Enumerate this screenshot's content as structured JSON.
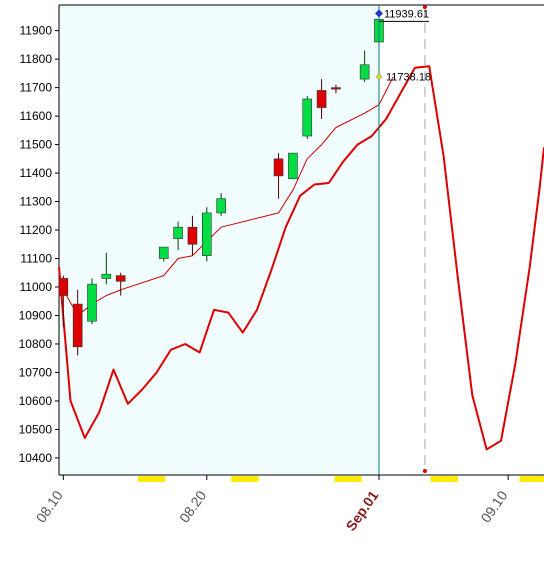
{
  "chart_data": {
    "type": "candlestick",
    "y_ticks": [
      10400,
      10500,
      10600,
      10700,
      10800,
      10900,
      11000,
      11100,
      11200,
      11300,
      11400,
      11500,
      11600,
      11700,
      11800,
      11900
    ],
    "ylim": [
      10340,
      11990
    ],
    "x_labels": [
      {
        "label": "08.10",
        "index": 0,
        "highlight": false
      },
      {
        "label": "08.20",
        "index": 10,
        "highlight": false
      },
      {
        "label": "Sep.01",
        "index": 22,
        "highlight": true
      },
      {
        "label": "09.10",
        "index": 31,
        "highlight": false
      }
    ],
    "x_range": [
      -0.3,
      33.5
    ],
    "cursor_index": 22,
    "forecast_index": 25.2,
    "candles": [
      {
        "i": 0,
        "open": 11030,
        "high": 11040,
        "low": 10860,
        "close": 10970
      },
      {
        "i": 1,
        "open": 10940,
        "high": 10990,
        "low": 10760,
        "close": 10790
      },
      {
        "i": 2,
        "open": 10880,
        "high": 11030,
        "low": 10870,
        "close": 11010
      },
      {
        "i": 3,
        "open": 11030,
        "high": 11120,
        "low": 11010,
        "close": 11045
      },
      {
        "i": 4,
        "open": 11040,
        "high": 11050,
        "low": 10970,
        "close": 11020
      },
      {
        "i": 7,
        "open": 11100,
        "high": 11140,
        "low": 11090,
        "close": 11140
      },
      {
        "i": 8,
        "open": 11170,
        "high": 11230,
        "low": 11130,
        "close": 11210
      },
      {
        "i": 9,
        "open": 11210,
        "high": 11250,
        "low": 11110,
        "close": 11150
      },
      {
        "i": 10,
        "open": 11110,
        "high": 11280,
        "low": 11090,
        "close": 11260
      },
      {
        "i": 11,
        "open": 11260,
        "high": 11330,
        "low": 11250,
        "close": 11310
      },
      {
        "i": 15,
        "open": 11450,
        "high": 11470,
        "low": 11310,
        "close": 11390
      },
      {
        "i": 16,
        "open": 11380,
        "high": 11470,
        "low": 11380,
        "close": 11470
      },
      {
        "i": 17,
        "open": 11530,
        "high": 11670,
        "low": 11520,
        "close": 11660
      },
      {
        "i": 18,
        "open": 11690,
        "high": 11730,
        "low": 11590,
        "close": 11630
      },
      {
        "i": 19,
        "open": 11700,
        "high": 11710,
        "low": 11680,
        "close": 11695
      },
      {
        "i": 21,
        "open": 11730,
        "high": 11830,
        "low": 11720,
        "close": 11780
      },
      {
        "i": 22,
        "open": 11860,
        "high": 11940,
        "low": 11850,
        "close": 11940
      }
    ],
    "series": [
      {
        "color": "#cc0000",
        "width": 1,
        "points": [
          [
            0,
            10990
          ],
          [
            1,
            10900
          ],
          [
            2,
            10940
          ],
          [
            3,
            10970
          ],
          [
            4,
            10990
          ],
          [
            7,
            11040
          ],
          [
            8,
            11100
          ],
          [
            9,
            11110
          ],
          [
            10,
            11160
          ],
          [
            11,
            11210
          ],
          [
            15,
            11260
          ],
          [
            16,
            11340
          ],
          [
            17,
            11450
          ],
          [
            18,
            11500
          ],
          [
            19,
            11560
          ],
          [
            21,
            11610
          ],
          [
            22,
            11640
          ],
          [
            23,
            11738.18
          ]
        ]
      },
      {
        "color": "#dd0000",
        "width": 2,
        "points": [
          [
            -0.3,
            11070
          ],
          [
            0.5,
            10600
          ],
          [
            1.5,
            10470
          ],
          [
            2.5,
            10560
          ],
          [
            3.5,
            10710
          ],
          [
            4.5,
            10590
          ],
          [
            5.5,
            10640
          ],
          [
            6.5,
            10700
          ],
          [
            7.5,
            10780
          ],
          [
            8.5,
            10800
          ],
          [
            9.5,
            10770
          ],
          [
            10.5,
            10920
          ],
          [
            11.5,
            10910
          ],
          [
            12.5,
            10840
          ],
          [
            13.5,
            10920
          ],
          [
            14.5,
            11060
          ],
          [
            15.5,
            11210
          ],
          [
            16.5,
            11320
          ],
          [
            17.5,
            11360
          ],
          [
            18.5,
            11365
          ],
          [
            19.5,
            11440
          ],
          [
            20.5,
            11500
          ],
          [
            21.5,
            11530
          ],
          [
            22.5,
            11590
          ],
          [
            23.5,
            11680
          ],
          [
            24.5,
            11770
          ],
          [
            25.5,
            11775
          ],
          [
            26.5,
            11460
          ],
          [
            27.5,
            11030
          ],
          [
            28.5,
            10620
          ],
          [
            29.5,
            10430
          ],
          [
            30.5,
            10460
          ],
          [
            31.5,
            10730
          ],
          [
            32.5,
            11070
          ],
          [
            33.2,
            11350
          ],
          [
            33.5,
            11490
          ]
        ]
      }
    ],
    "annotations": [
      {
        "text": "11939.61",
        "index": 22,
        "value": 11939.61
      },
      {
        "text": "11738.18",
        "index": 22,
        "value": 11738.18
      }
    ],
    "colors": {
      "plot_bg": "#f0fcfd",
      "up": "#00dd44",
      "down": "#dd0000",
      "cursor": "#008080",
      "forecast": "#aaaaaa",
      "yellow_markers": "#ffea00"
    },
    "grid": false
  }
}
